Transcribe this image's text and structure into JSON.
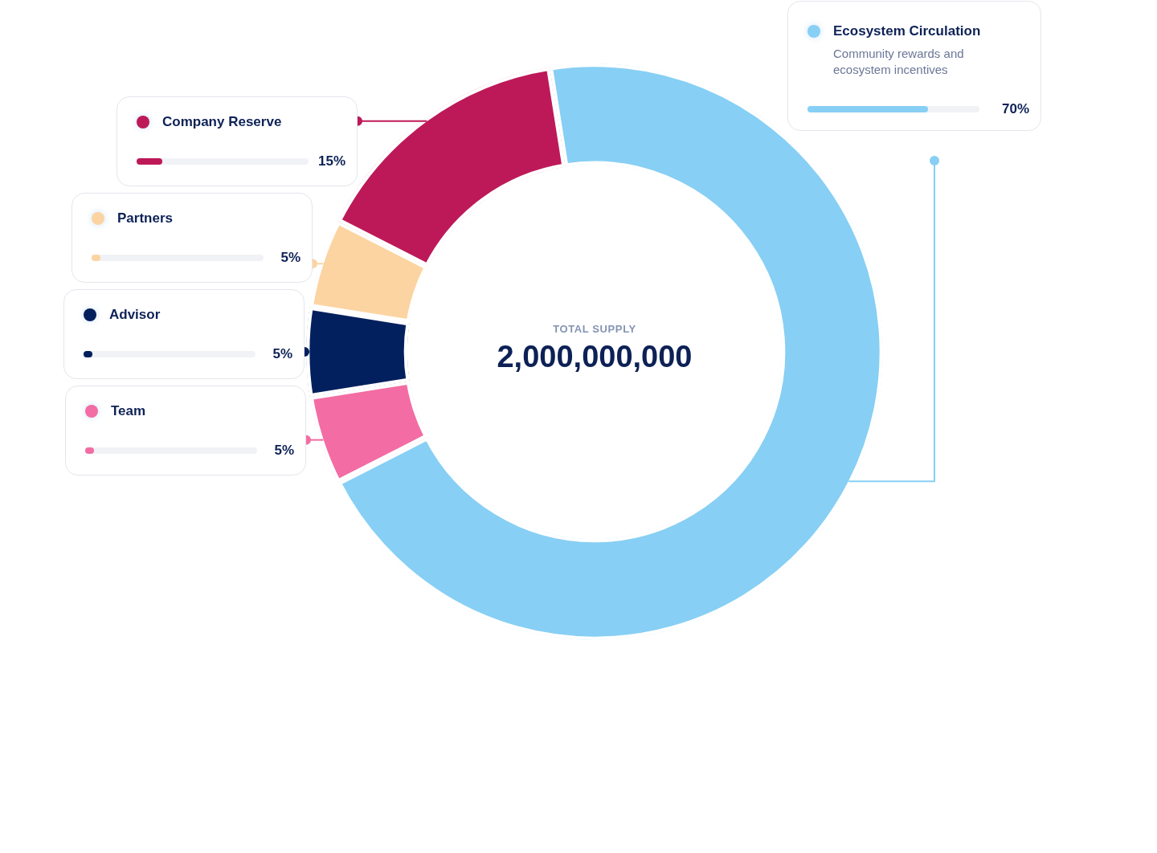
{
  "chart_data": {
    "type": "donut",
    "title": "TOTAL SUPPLY",
    "subtitle": "2,000,000,000",
    "categories": [
      "Ecosystem Circulation",
      "Team",
      "Advisor",
      "Partners",
      "Company Reserve"
    ],
    "values": [
      70,
      5,
      5,
      5,
      15
    ],
    "colors": [
      "#87cff4",
      "#f36ca3",
      "#03205e",
      "#fcd4a2",
      "#bd1958"
    ],
    "value_labels": [
      "70%",
      "5%",
      "5%",
      "5%",
      "15%"
    ],
    "legend": "left",
    "annotations": [
      "Community rewards and ecosystem incentives"
    ]
  }
}
